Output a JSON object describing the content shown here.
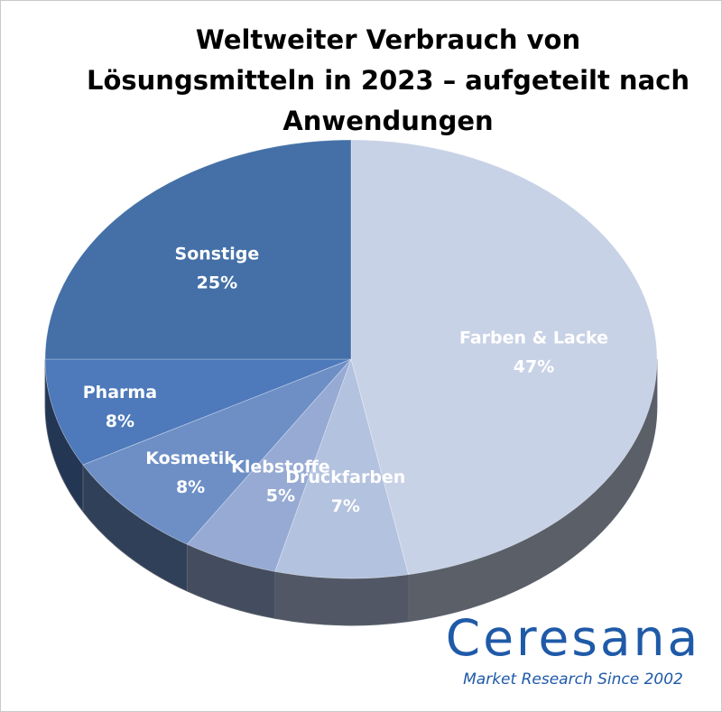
{
  "chart_data": {
    "type": "pie",
    "title_lines": [
      "Weltweiter Verbrauch von",
      "Lösungsmitteln in 2023 – aufgeteilt nach",
      "Anwendungen"
    ],
    "slices": [
      {
        "name": "Farben & Lacke",
        "value": 47,
        "label": "47%",
        "color": "#c8d2e6"
      },
      {
        "name": "Druckfarben",
        "value": 7,
        "label": "7%",
        "color": "#b3c2de"
      },
      {
        "name": "Klebstoffe",
        "value": 5,
        "label": "5%",
        "color": "#96aad3"
      },
      {
        "name": "Kosmetik",
        "value": 8,
        "label": "8%",
        "color": "#6d8fc6"
      },
      {
        "name": "Pharma",
        "value": 8,
        "label": "8%",
        "color": "#4e79ba"
      },
      {
        "name": "Sonstige",
        "value": 25,
        "label": "25%",
        "color": "#4470a7"
      }
    ],
    "style": "3d-tilted",
    "start": "top, clockwise",
    "legend": "none"
  },
  "branding": {
    "name": "Ceresana",
    "tagline": "Market Research Since 2002",
    "color": "#1f5aa8"
  }
}
